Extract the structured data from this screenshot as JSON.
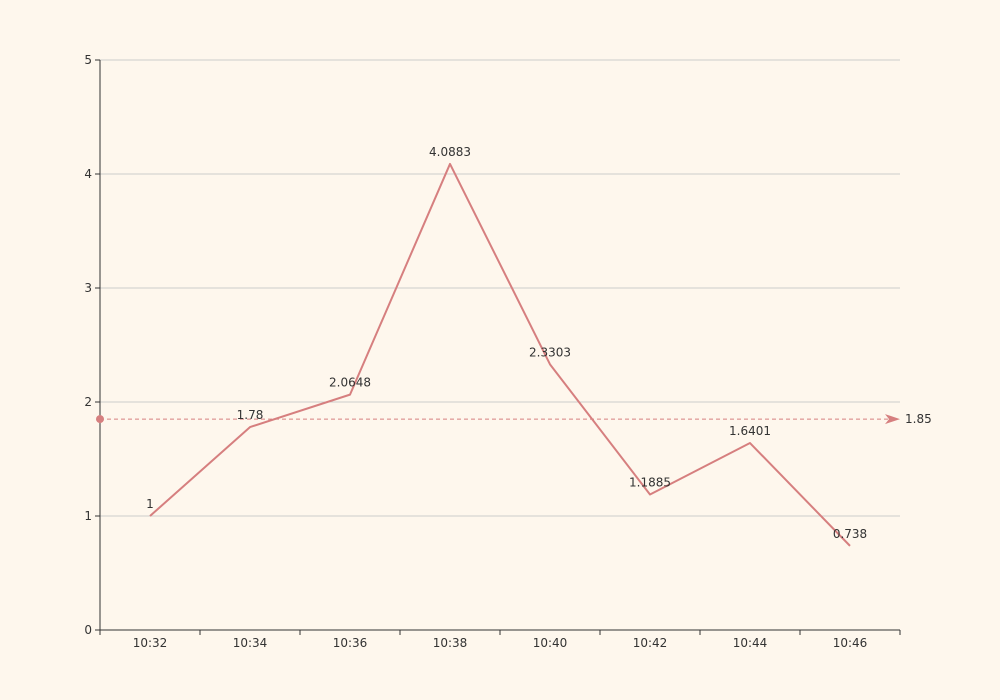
{
  "chart_data": {
    "type": "line",
    "title": "",
    "xlabel": "",
    "ylabel": "",
    "categories": [
      "10:32",
      "10:34",
      "10:36",
      "10:38",
      "10:40",
      "10:42",
      "10:44",
      "10:46"
    ],
    "series": [
      {
        "values": [
          1,
          1.78,
          2.0648,
          4.0883,
          2.3303,
          1.1885,
          1.6401,
          0.738
        ],
        "labels": [
          "1",
          "1.78",
          "2.0648",
          "4.0883",
          "2.3303",
          "1.1885",
          "1.6401",
          "0.738"
        ],
        "color": "#d67f7f"
      }
    ],
    "ylim": [
      0,
      5
    ],
    "yticks": [
      "0",
      "1",
      "2",
      "3",
      "4",
      "5"
    ],
    "grid": true,
    "average_line": {
      "value": 1.85,
      "label": "1.85",
      "color": "#d67f7f",
      "style": "dashed"
    },
    "colors": {
      "background": "#fef7ed",
      "axis": "#333333",
      "grid": "#cccccc",
      "line": "#d67f7f"
    }
  }
}
